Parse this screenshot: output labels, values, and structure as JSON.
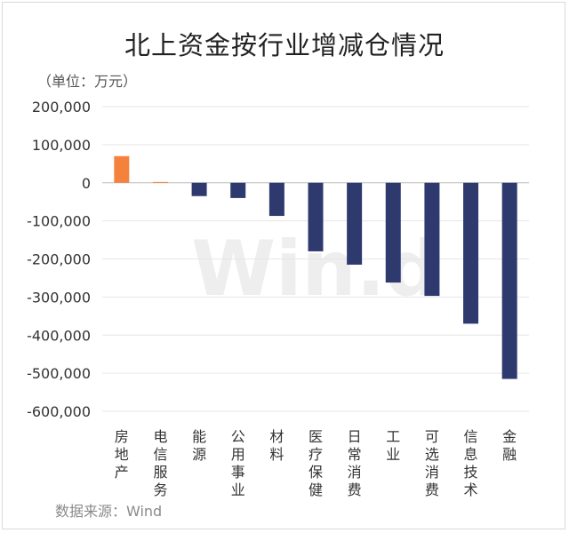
{
  "title": "北上资金按行业增减仓情况",
  "unit_label": "（单位：万元）",
  "source": "数据来源：Wind",
  "watermark": "Win.d",
  "colors": {
    "positive": "#f5823c",
    "negative": "#2e3a6e",
    "grid": "#e6e6e6",
    "axis": "#bbbbbb"
  },
  "chart_data": {
    "type": "bar",
    "categories": [
      "房地产",
      "电信服务",
      "能源",
      "公用事业",
      "材料",
      "医疗保健",
      "日常消费",
      "工业",
      "可选消费",
      "信息技术",
      "金融"
    ],
    "values": [
      70000,
      2000,
      -35000,
      -40000,
      -87000,
      -180000,
      -215000,
      -262000,
      -297000,
      -370000,
      -515000
    ],
    "title": "北上资金按行业增减仓情况",
    "ylabel": "单位：万元",
    "ylim": [
      -600000,
      200000
    ],
    "yticks": [
      200000,
      100000,
      0,
      -100000,
      -200000,
      -300000,
      -400000,
      -500000,
      -600000
    ],
    "ytick_labels": [
      "200,000",
      "100,000",
      "0",
      "-100,000",
      "-200,000",
      "-300,000",
      "-400,000",
      "-500,000",
      "-600,000"
    ],
    "grid": true,
    "legend": "none"
  }
}
